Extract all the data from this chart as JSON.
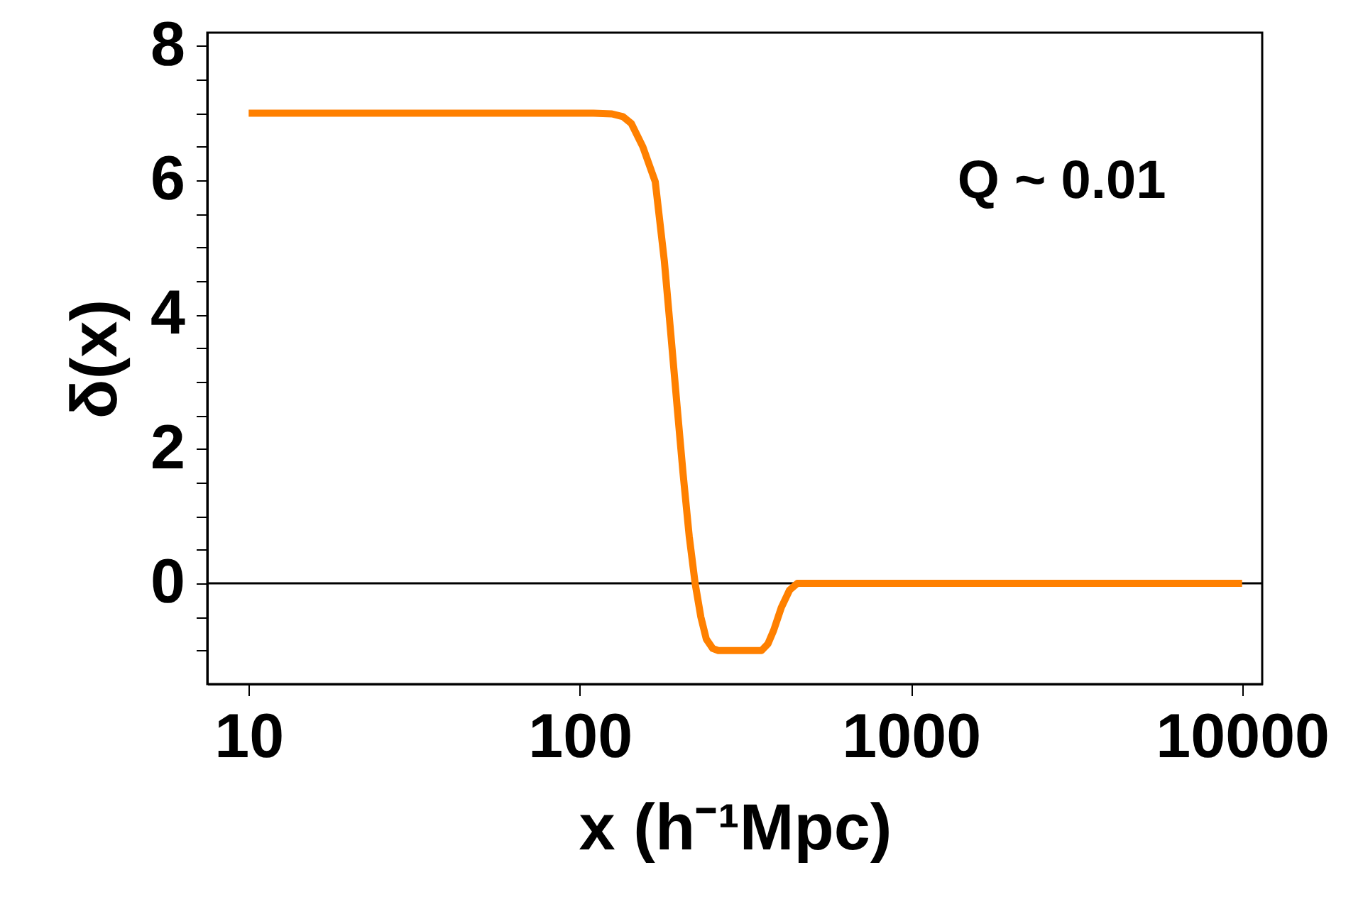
{
  "chart_data": {
    "type": "line",
    "xlabel": "x (h⁻¹Mpc)",
    "ylabel": "δ(x)",
    "annotations": [
      "Q ~ 0.01"
    ],
    "x": [
      10,
      50,
      110,
      125,
      135,
      143,
      155,
      169,
      180,
      188,
      197,
      205,
      214,
      223,
      232,
      241,
      252,
      262,
      300,
      354,
      370,
      385,
      406,
      430,
      454,
      1000,
      10000
    ],
    "series": [
      {
        "color": "#ff8000",
        "values": [
          7,
          7,
          7,
          6.99,
          6.95,
          6.85,
          6.5,
          5.98,
          4.8,
          3.75,
          2.6,
          1.64,
          0.7,
          0,
          -0.5,
          -0.83,
          -0.97,
          -1,
          -1,
          -1,
          -0.9,
          -0.7,
          -0.36,
          -0.1,
          0,
          0,
          0
        ]
      }
    ],
    "log": "x",
    "xlim": [
      7.5,
      11500
    ],
    "xticks": [
      10,
      100,
      1000,
      10000
    ],
    "ylim": [
      -1.5,
      8.2
    ],
    "yticks": [
      {
        "value": -1,
        "label": null
      },
      {
        "value": -0.5,
        "label": null
      },
      0,
      {
        "value": 0.5,
        "label": null
      },
      {
        "value": 1,
        "label": null
      },
      {
        "value": 1.5,
        "label": null
      },
      2,
      {
        "value": 2.5,
        "label": null
      },
      {
        "value": 3,
        "label": null
      },
      {
        "value": 3.5,
        "label": null
      },
      4,
      {
        "value": 4.5,
        "label": null
      },
      {
        "value": 5,
        "label": null
      },
      {
        "value": 5.5,
        "label": null
      },
      6,
      {
        "value": 6.5,
        "label": null
      },
      {
        "value": 7,
        "label": null
      },
      {
        "value": 7.5,
        "label": null
      },
      8
    ],
    "ref_lines": [
      {
        "axis": "y",
        "value": 0,
        "color": "#000000"
      }
    ],
    "grid": false,
    "legend": false,
    "marker": "none",
    "line_style": "solid"
  }
}
